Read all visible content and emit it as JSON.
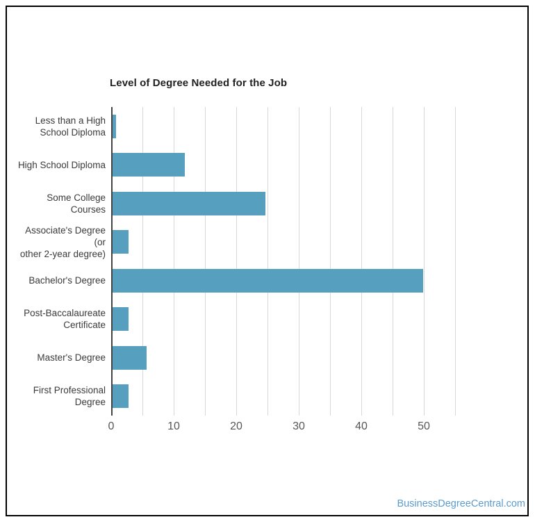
{
  "branding": {
    "watermark": "BusinessDegreeCentral.com",
    "link_color": "#5b9bce"
  },
  "chart_data": {
    "type": "bar",
    "orientation": "horizontal",
    "title": "Level of Degree Needed for the Job",
    "categories": [
      "Less than a High\nSchool Diploma",
      "High School Diploma",
      "Some College Courses",
      "Associate's Degree (or\nother 2-year degree)",
      "Bachelor's Degree",
      "Post-Baccalaureate\nCertificate",
      "Master's Degree",
      "First Professional\nDegree"
    ],
    "values": [
      0.6,
      11.6,
      24.4,
      2.5,
      49.7,
      2.6,
      5.4,
      2.5
    ],
    "x_ticks": [
      0,
      10,
      20,
      30,
      40,
      50
    ],
    "xlim": [
      0,
      57
    ],
    "gridline_step": 5,
    "gridline_max": 55,
    "grid": true,
    "legend": "none",
    "bar_color": "#569fbe",
    "gridline_color": "#d8d8d8",
    "axis_line_color": "#424242"
  }
}
